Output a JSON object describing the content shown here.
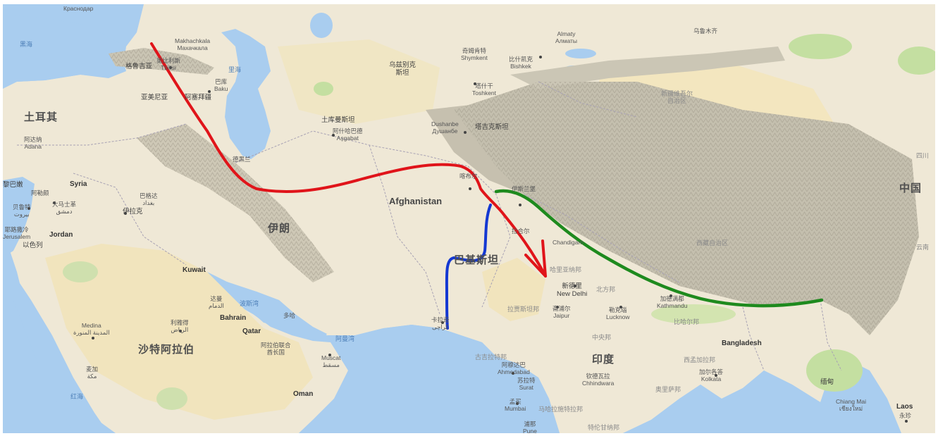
{
  "map": {
    "colors": {
      "water": "#a9cdef",
      "land": "#efe8d6",
      "desert": "#f1e4bd",
      "mountain": "#c7c2b2",
      "vegetation": "#c4dfa1",
      "route_red": "#e0141a",
      "route_green": "#1e8a1e",
      "route_blue": "#1438d2"
    },
    "countries": {
      "turkey": "土耳其",
      "syria": "Syria",
      "iraq": "伊拉克",
      "iran": "伊朗",
      "afghanistan": "Afghanistan",
      "pakistan": "巴基斯坦",
      "india": "印度",
      "china": "中国",
      "saudi": "沙特阿拉伯",
      "jordan": "Jordan",
      "kuwait": "Kuwait",
      "bahrain": "Bahrain",
      "qatar": "Qatar",
      "oman": "Oman",
      "bangladesh": "Bangladesh",
      "laos": "Laos",
      "uzbekistan": "乌兹别克\n斯坦",
      "turkmenistan": "土库曼斯坦",
      "azerbaijan": "阿塞拜疆",
      "armenia": "亚美尼亚",
      "georgia": "格鲁吉亚",
      "israel": "以色列",
      "lebanon": "黎巴嫩",
      "tajikistan": "塔吉克斯坦",
      "myanmar": "缅甸"
    },
    "cities": {
      "krasnodar": "Краснодар",
      "makhachkala": "Makhachkala\nМахачкала",
      "tbilisi": "第比利斯\nTbilisi",
      "baku": "巴库\nBaku",
      "adana": "阿达纳\nAdana",
      "aleppo": "阿勒颇",
      "damascus": "大马士革\nدمشق",
      "beirut": "贝鲁特\nبيروت",
      "jerusalem": "耶路撒冷\nJerusalem",
      "baghdad": "巴格达\nبغداد",
      "tehran": "德黑兰",
      "ashgabat": "阿什哈巴德\nAşgabat",
      "tashkent": "塔什干\nToshkent",
      "shymkent": "奇姆肯特\nShymkent",
      "bishkek": "比什凯克\nBishkek",
      "almaty": "Almaty\nАлматы",
      "urumqi": "乌鲁木齐",
      "dushanbe": "Dushanbe\nДушанбе",
      "kabul": "喀布尔",
      "islamabad": "伊斯兰堡",
      "lahore": "拉合尔",
      "chandigarh": "Chandigarh",
      "delhi": "新德里\nNew Delhi",
      "jaipur": "斋浦尔\nJaipur",
      "lucknow": "勒克瑙\nLucknow",
      "kathmandu": "加德满都\nKathmandu",
      "karachi": "卡拉奇\nکراچی",
      "ahmedabad": "阿穆达巴\nAhmedabad",
      "surat": "苏拉特\nSurat",
      "mumbai": "孟买\nMumbai",
      "pune": "浦那\nPune",
      "chhindwara": "钦德瓦拉\nChhindwara",
      "kolkata": "加尔各答\nKolkata",
      "medina": "Medina\nالمدينة المنورة",
      "riyadh": "利雅得\nالرياض",
      "mecca": "麦加\nمكة",
      "dammam": "达曼\nالدمام",
      "doha": "多哈",
      "abudhabi": "阿拉伯联合\n酋长国",
      "muscat": "Muscat\nمسقط",
      "chiangmai": "Chiang Mai\nเชียงใหม่",
      "vientiane": "永珍"
    },
    "seas": {
      "black_sea": "黑海",
      "caspian": "里海",
      "red_sea": "红海",
      "persian_gulf": "波斯湾",
      "oman_gulf": "阿曼湾"
    },
    "regions": {
      "xinjiang": "新疆维吾尔\n自治区",
      "tibet": "西藏自治区",
      "rajasthan": "拉贾斯坦邦",
      "up": "北方邦",
      "bihar": "比哈尔邦",
      "gujarat": "古吉拉特邦",
      "mp": "中央邦",
      "maharashtra": "马哈拉施特拉邦",
      "telangana": "特伦甘纳邦",
      "odisha": "奥里萨邦",
      "westbengal": "西孟加拉邦",
      "haryana": "哈里亚纳邦",
      "yunnan": "云南",
      "sichuan": "四川"
    }
  }
}
